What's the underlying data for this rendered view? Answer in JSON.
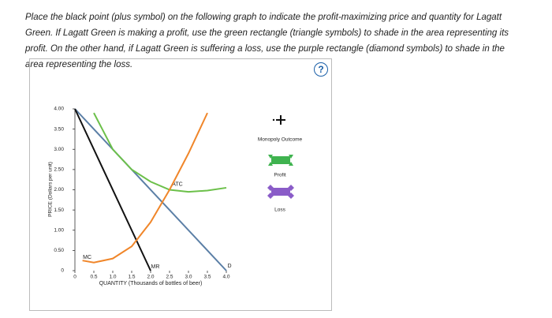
{
  "instructions": "Place the black point (plus symbol) on the following graph to indicate the profit-maximizing price and quantity for Lagatt Green. If Lagatt Green is making a profit, use the green rectangle (triangle symbols) to shade in the area representing its profit. On the other hand, if Lagatt Green is suffering a loss, use the purple rectangle (diamond symbols) to shade in the area representing the loss.",
  "tools": {
    "monopoly": "Monopoly Outcome",
    "profit": "Profit",
    "loss": "Loss"
  },
  "chart_data": {
    "type": "line",
    "x_label": "QUANTITY (Thousands of bottles of beer)",
    "y_label": "PRICE (Dollars per unit)",
    "xlim": [
      0,
      4
    ],
    "ylim": [
      0,
      4
    ],
    "xticks": [
      0,
      {
        "value": 0.5,
        "label": "0.5"
      },
      {
        "value": 1,
        "label": "1.0"
      },
      {
        "value": 1.5,
        "label": "1.5"
      },
      {
        "value": 2,
        "label": "2.0"
      },
      {
        "value": 2.5,
        "label": "2.5"
      },
      {
        "value": 3,
        "label": "3.0"
      },
      {
        "value": 3.5,
        "label": "3.5"
      },
      {
        "value": 4,
        "label": "4.0"
      }
    ],
    "yticks": [
      0,
      {
        "value": 0.5,
        "label": "0.50"
      },
      {
        "value": 1,
        "label": "1.00"
      },
      {
        "value": 1.5,
        "label": "1.50"
      },
      {
        "value": 2,
        "label": "2.00"
      },
      {
        "value": 2.5,
        "label": "2.50"
      },
      {
        "value": 3,
        "label": "3.00"
      },
      {
        "value": 3.5,
        "label": "3.50"
      },
      {
        "value": 4,
        "label": "4.00"
      }
    ],
    "series": [
      {
        "name": "D",
        "color": "#5b7fa6",
        "x": [
          0,
          4
        ],
        "values": [
          4,
          0
        ]
      },
      {
        "name": "MR",
        "color": "#111111",
        "x": [
          0,
          2
        ],
        "values": [
          4,
          0
        ]
      },
      {
        "name": "ATC",
        "color": "#6cc04a",
        "x": [
          0.5,
          1,
          1.5,
          2,
          2.5,
          3,
          3.5,
          4
        ],
        "values": [
          3.9,
          3.0,
          2.5,
          2.2,
          2.0,
          1.95,
          1.98,
          2.05
        ]
      },
      {
        "name": "MC",
        "color": "#f0862a",
        "x": [
          0.2,
          0.5,
          1,
          1.5,
          2,
          2.5,
          3,
          3.5
        ],
        "values": [
          0.25,
          0.2,
          0.3,
          0.6,
          1.2,
          2.0,
          2.9,
          3.9
        ]
      }
    ]
  }
}
